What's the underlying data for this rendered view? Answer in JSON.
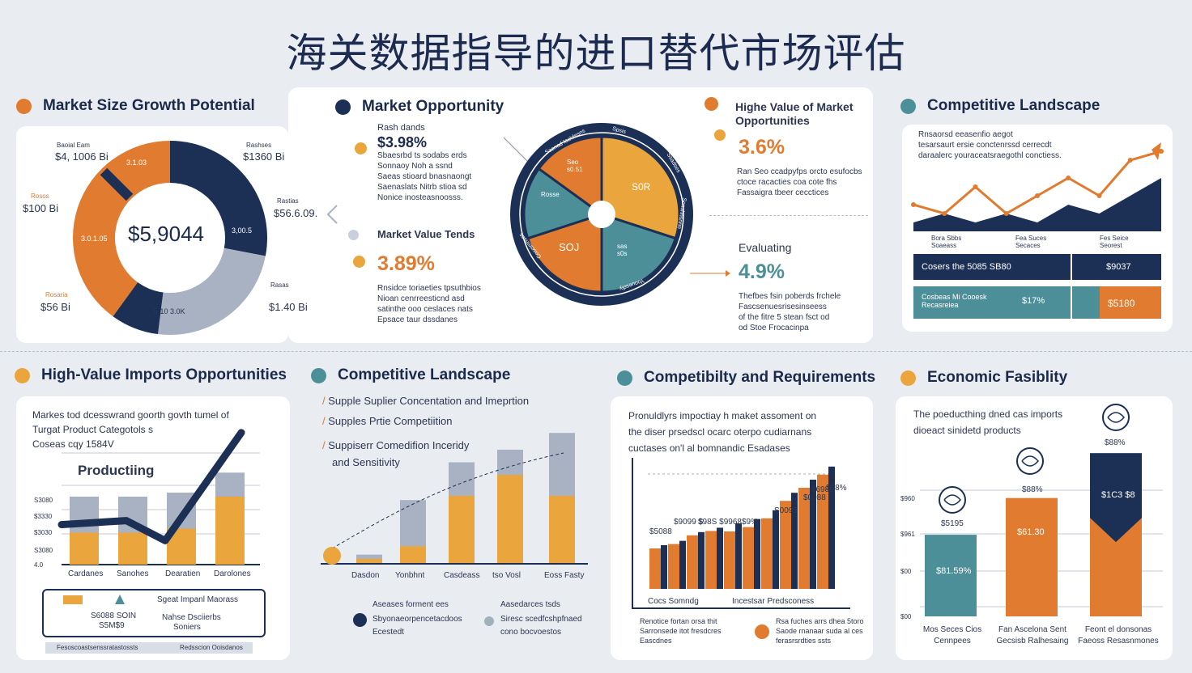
{
  "title": "海关数据指导的进口替代市场评估",
  "colors": {
    "navy": "#1c2f55",
    "orange": "#e07b2f",
    "gold": "#eaa53d",
    "teal": "#4d8f99",
    "gray": "#a9b2c3"
  },
  "top": {
    "market_size": {
      "heading": "Market Size Growth Potential",
      "center_value": "$5,9044",
      "labels": {
        "tl_small": "Baoial Eam",
        "tl_value": "$4, 1006 Bi",
        "tr_small": "Rashses",
        "tr_value": "$1360 Bi",
        "l_small": "Rosos",
        "l_value": "$100 Bi",
        "r_small": "Rastias",
        "r_value": "$56.6.09.",
        "bl_small": "Rosaria",
        "bl_value": "$56 Bi",
        "br_small": "Rasas",
        "br_value": "$1.40 Bi"
      },
      "slice_labels": [
        "3.1.03",
        "3.0.1.05",
        "3,00.5",
        "5.10 3.0K"
      ]
    },
    "opportunity": {
      "heading": "Market Opportunity",
      "block1_label": "Rash dands",
      "block1_value": "$3.98%",
      "block1_text": [
        "Sbaesrbd ts sodabs erds",
        "Sonnaoy Noh a ssnd",
        "Saeas stioard bnasnaongt",
        "Saenaslats Nitrb stioa sd",
        "Nonice inosteasnoosss."
      ],
      "block2_label": "Market Value Tends",
      "block2_value": "3.89%",
      "block2_text": [
        "Rnsidce toriaeties tpsuthbios",
        "Nioan cenrreesticnd asd",
        "satinthe ooo ceslaces nats",
        "Epsace taur dssdanes"
      ],
      "wheel_outer": [
        "Saonad Iaoidesns",
        "Spsis",
        "Ssadses",
        "Sonshnsnnn",
        "Yoouesdiy",
        "Coseimnsas"
      ],
      "wheel_inner": [
        "Seo s0.51",
        "S0R",
        "Rosse",
        "SOJ",
        "sas s0s"
      ]
    },
    "high_value": {
      "heading": "Highe Value of Market Opportunities",
      "value1": "3.6%",
      "text1": [
        "Ran Seo ccadpyfps orcto esufocbs",
        "ctoce racacties coa cote fhs",
        "Fassaigra tbeer cecctices"
      ],
      "label2": "Evaluating",
      "value2": "4.9%",
      "text2": [
        "Thefbes fsin poberds frchele",
        "Fascsenuesrisesinseess",
        "of the fitre 5 stean fsct od",
        "od Stoe Frocacinpa"
      ]
    },
    "competitive": {
      "heading": "Competitive Landscape",
      "text": [
        "Rnsaorsd eeasenfio aegot",
        "tesarsaurt ersie conctenrssd cerrecdt",
        "daraalerc youraceatsraegothl conctiess."
      ],
      "axis_labels": [
        "Bora Sbbs Soaeass",
        "Fea Suces Secaces",
        "Fes Seice Seorest"
      ],
      "row1_label": "Cosers the 5085 SB80",
      "row1_value": "$9037",
      "row2_label": "Cosbeas Mi Cooesk Recasreiea",
      "row2_value": "$17%",
      "row2_extra": "$5180"
    }
  },
  "bottom": {
    "imports": {
      "heading": "High-Value Imports Opportunities",
      "text": [
        "Markes tod dcesswrand goorth govth tumel of",
        "Turgat Product Categotols s",
        "Coseas cqy 1584V"
      ],
      "callout": "Productiing",
      "y_ticks": [
        "S3080",
        "$3330",
        "$3030",
        "S3080",
        "4.0"
      ],
      "x_labels": [
        "Cardanes",
        "Sanohes",
        "Dearatien",
        "Darolones"
      ],
      "legend_text": "Sgeat Impanl Maorass",
      "legend_left": [
        "S6088 SOIN",
        "S5M$9"
      ],
      "legend_right": [
        "Nahse Dsciierbs",
        "Soniers"
      ],
      "footer": [
        "Fesoscoastsenssratastossts",
        "Redsscion Ooisdanos"
      ]
    },
    "competitive2": {
      "heading": "Competitive Landscape",
      "bullets": [
        "Supple Suplier Concentation and Imeprtion",
        "Supples Prtie Competiition",
        "Suppiserr Comedifion Inceridy",
        "and Sensitivity"
      ],
      "x_labels": [
        "Dasdon",
        "Yonbhnt",
        "Casdeass",
        "tso Vosl",
        "Eoss Fasty"
      ],
      "legend": [
        {
          "title": "Aseases forment ees",
          "text": [
            "Sbyonaeorpencetacdoos",
            "Ecestedt"
          ]
        },
        {
          "title": "Aasedarces tsds",
          "text": [
            "Siresc scedfcshpfnaed",
            "cono bocvoestos"
          ]
        }
      ]
    },
    "requirements": {
      "heading": "Competibilty and Requirements",
      "text": [
        "Pronuldlyrs impoctiay h maket assoment on",
        "the diser prsedscl ocarc oterpo cudiarnans",
        "cuctases on'l al bomnandic Esadases"
      ],
      "value_labels": [
        "$5088",
        "$9099 $",
        "$98S $9968$9%",
        "S0095",
        "$0088",
        "$6980",
        "$98%"
      ],
      "axis_labels": [
        "Cocs Somndg",
        "Incestsar Predsconess"
      ],
      "legend_left": [
        "Renotice fortan orsa thit",
        "Sarronsede itot fresdcres",
        "Eascdnes"
      ],
      "legend_right": [
        "Rsa fuches arrs dhea 5toro",
        "Saode rnanaar suda al ces",
        "ferasrsrdties ssts"
      ]
    },
    "feasibility": {
      "heading": "Economic Fasiblity",
      "text": [
        "The poeducthing dned cas imports",
        "dioeact sinidetd products"
      ],
      "y_ticks": [
        "$960",
        "$961",
        "$00",
        "$00"
      ],
      "bar_tops": [
        "$5195",
        "$88%",
        "$88%"
      ],
      "bar_values": [
        "$81.59%",
        "$61.30",
        "$1C3 $8"
      ],
      "x_labels": [
        "Mos Seces Cios Cennpees",
        "Fan Ascelona Sent Gecsisb Ralhesaing",
        "Feont el donsonas Faeoss Resasnmones"
      ]
    }
  },
  "chart_data": [
    {
      "type": "pie",
      "title": "Market Size Growth Potential",
      "slices": [
        {
          "label": "navy",
          "value": 28
        },
        {
          "label": "gray",
          "value": 24
        },
        {
          "label": "navy-small",
          "value": 8
        },
        {
          "label": "orange",
          "value": 40
        }
      ],
      "center": "$5,9044"
    },
    {
      "type": "pie",
      "title": "Market Opportunity",
      "slices": [
        {
          "label": "gold",
          "value": 30
        },
        {
          "label": "teal",
          "value": 20
        },
        {
          "label": "orange",
          "value": 20
        },
        {
          "label": "teal-left",
          "value": 15
        },
        {
          "label": "orange-top",
          "value": 15
        }
      ]
    },
    {
      "type": "line",
      "title": "Competitive Landscape",
      "series": [
        {
          "name": "orange",
          "values": [
            3,
            2,
            5,
            2,
            4,
            6,
            4,
            8,
            9
          ]
        },
        {
          "name": "navy",
          "values": [
            1,
            2,
            1,
            2,
            1,
            3,
            2,
            4,
            6
          ]
        }
      ]
    },
    {
      "type": "bar",
      "title": "High-Value Imports Opportunities",
      "categories": [
        "Cardanes",
        "Sanohes",
        "Dearatien",
        "Darolones"
      ],
      "series": [
        {
          "name": "gold",
          "values": [
            40,
            40,
            45,
            85
          ]
        },
        {
          "name": "gray",
          "values": [
            85,
            85,
            90,
            115
          ]
        },
        {
          "name": "line",
          "values": [
            50,
            55,
            30,
            165
          ]
        }
      ]
    },
    {
      "type": "bar",
      "title": "Competitive Landscape",
      "categories": [
        "Dasdon",
        "Yonbhnt",
        "Casdeass",
        "tso Vosl",
        "Eoss Fasty"
      ],
      "series": [
        {
          "name": "gold",
          "values": [
            5,
            20,
            80,
            105,
            80
          ]
        },
        {
          "name": "gray",
          "values": [
            10,
            75,
            120,
            135,
            155
          ]
        }
      ]
    },
    {
      "type": "bar",
      "title": "Competibilty and Requirements",
      "series": [
        {
          "name": "orange",
          "values": [
            20,
            22,
            26,
            28,
            30,
            32,
            36,
            44,
            50,
            56
          ]
        },
        {
          "name": "navy",
          "values": [
            20,
            22,
            26,
            28,
            30,
            32,
            36,
            44,
            50,
            56
          ]
        }
      ]
    },
    {
      "type": "bar",
      "title": "Economic Fasiblity",
      "categories": [
        "1",
        "2",
        "3"
      ],
      "values": [
        100,
        145,
        200
      ],
      "ylim": [
        0,
        220
      ]
    }
  ]
}
